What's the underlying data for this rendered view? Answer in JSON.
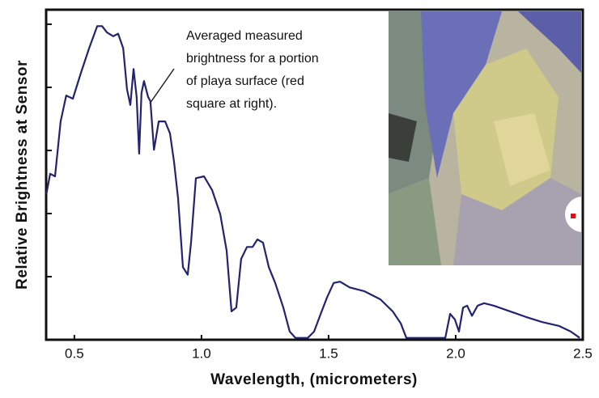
{
  "chart_data": {
    "type": "line",
    "x_label": "Wavelength, (micrometers)",
    "y_label": "Relative Brightness at Sensor",
    "annotation": [
      "Averaged measured",
      "brightness for a portion",
      "of playa surface (red",
      "square at right)."
    ],
    "xlim": [
      0.389,
      2.5
    ],
    "ylim": [
      0,
      5.23
    ],
    "xticks": [
      0.5,
      {
        "value": 1,
        "label": "1.0"
      },
      1.5,
      {
        "value": 2,
        "label": "2.0"
      },
      2.5
    ],
    "yticks": [
      1,
      2,
      3,
      4,
      5
    ],
    "series": [
      {
        "color": "#23236e",
        "x": [
          0.39,
          0.405,
          0.424,
          0.446,
          0.468,
          0.494,
          0.526,
          0.558,
          0.59,
          0.609,
          0.628,
          0.653,
          0.672,
          0.692,
          0.707,
          0.72,
          0.733,
          0.745,
          0.755,
          0.764,
          0.774,
          0.79,
          0.799,
          0.813,
          0.832,
          0.857,
          0.876,
          0.892,
          0.908,
          0.927,
          0.946,
          0.959,
          0.978,
          1.01,
          1.042,
          1.074,
          1.099,
          1.118,
          1.137,
          1.156,
          1.179,
          1.201,
          1.22,
          1.242,
          1.265,
          1.29,
          1.322,
          1.347,
          1.37,
          1.418,
          1.443,
          1.469,
          1.494,
          1.52,
          1.545,
          1.583,
          1.64,
          1.704,
          1.752,
          1.784,
          1.806,
          1.959,
          1.978,
          1.997,
          2.013,
          2.029,
          2.045,
          2.064,
          2.086,
          2.112,
          2.15,
          2.214,
          2.277,
          2.341,
          2.405,
          2.453,
          2.488
        ],
        "values": [
          2.31,
          2.63,
          2.59,
          3.46,
          3.87,
          3.82,
          4.23,
          4.62,
          4.97,
          4.97,
          4.87,
          4.81,
          4.85,
          4.62,
          3.97,
          3.72,
          4.29,
          3.85,
          2.95,
          3.91,
          4.1,
          3.85,
          3.78,
          3.01,
          3.46,
          3.46,
          3.27,
          2.82,
          2.24,
          1.15,
          1.03,
          1.54,
          2.56,
          2.59,
          2.37,
          1.99,
          1.41,
          0.45,
          0.51,
          1.28,
          1.47,
          1.47,
          1.59,
          1.54,
          1.15,
          0.9,
          0.51,
          0.13,
          0.03,
          0.03,
          0.13,
          0.41,
          0.67,
          0.9,
          0.92,
          0.83,
          0.77,
          0.64,
          0.45,
          0.26,
          0.03,
          0.03,
          0.41,
          0.32,
          0.13,
          0.51,
          0.54,
          0.38,
          0.54,
          0.58,
          0.54,
          0.45,
          0.36,
          0.28,
          0.22,
          0.13,
          0.03
        ]
      }
    ]
  }
}
